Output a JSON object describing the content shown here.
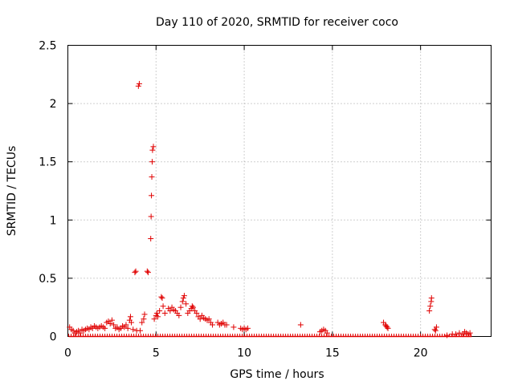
{
  "chart_data": {
    "type": "scatter",
    "title": "Day 110 of 2020, SRMTID for receiver coco",
    "xlabel": "GPS time / hours",
    "ylabel": "SRMTID / TECUs",
    "xlim": [
      0,
      24
    ],
    "ylim": [
      0,
      2.5
    ],
    "x_ticks": [
      0,
      5,
      10,
      15,
      20
    ],
    "y_ticks": [
      0,
      0.5,
      1,
      1.5,
      2,
      2.5
    ],
    "x_tick_labels": [
      "0",
      "5",
      "10",
      "15",
      "20"
    ],
    "y_tick_labels": [
      "0",
      "0.5",
      "1",
      "1.5",
      "2",
      "2.5"
    ],
    "grid": true,
    "marker": "+",
    "color": "#e00000",
    "zero_band": [
      0.05,
      22.9
    ],
    "series": [
      {
        "name": "SRMTID",
        "points": [
          [
            0.1,
            0.08
          ],
          [
            0.2,
            0.06
          ],
          [
            0.3,
            0.05
          ],
          [
            0.4,
            0.03
          ],
          [
            0.5,
            0.04
          ],
          [
            0.6,
            0.05
          ],
          [
            0.7,
            0.03
          ],
          [
            0.8,
            0.06
          ],
          [
            0.9,
            0.05
          ],
          [
            1.0,
            0.06
          ],
          [
            1.1,
            0.07
          ],
          [
            1.2,
            0.06
          ],
          [
            1.3,
            0.08
          ],
          [
            1.4,
            0.07
          ],
          [
            1.5,
            0.09
          ],
          [
            1.6,
            0.08
          ],
          [
            1.7,
            0.07
          ],
          [
            1.8,
            0.08
          ],
          [
            1.9,
            0.09
          ],
          [
            2.0,
            0.08
          ],
          [
            2.1,
            0.07
          ],
          [
            2.2,
            0.12
          ],
          [
            2.3,
            0.13
          ],
          [
            2.4,
            0.11
          ],
          [
            2.5,
            0.14
          ],
          [
            2.6,
            0.1
          ],
          [
            2.7,
            0.07
          ],
          [
            2.8,
            0.08
          ],
          [
            2.9,
            0.06
          ],
          [
            3.0,
            0.07
          ],
          [
            3.1,
            0.09
          ],
          [
            3.2,
            0.08
          ],
          [
            3.3,
            0.1
          ],
          [
            3.4,
            0.07
          ],
          [
            3.5,
            0.14
          ],
          [
            3.55,
            0.17
          ],
          [
            3.6,
            0.12
          ],
          [
            3.7,
            0.06
          ],
          [
            3.8,
            0.55
          ],
          [
            3.85,
            0.56
          ],
          [
            3.9,
            0.05
          ],
          [
            4.0,
            2.15
          ],
          [
            4.05,
            2.17
          ],
          [
            4.1,
            0.05
          ],
          [
            4.2,
            0.12
          ],
          [
            4.3,
            0.15
          ],
          [
            4.35,
            0.19
          ],
          [
            4.5,
            0.56
          ],
          [
            4.55,
            0.55
          ],
          [
            4.7,
            0.84
          ],
          [
            4.72,
            1.03
          ],
          [
            4.74,
            1.21
          ],
          [
            4.76,
            1.37
          ],
          [
            4.78,
            1.5
          ],
          [
            4.8,
            1.6
          ],
          [
            4.85,
            1.63
          ],
          [
            4.9,
            0.15
          ],
          [
            5.0,
            0.18
          ],
          [
            5.05,
            0.2
          ],
          [
            5.1,
            0.17
          ],
          [
            5.2,
            0.22
          ],
          [
            5.3,
            0.34
          ],
          [
            5.35,
            0.33
          ],
          [
            5.4,
            0.26
          ],
          [
            5.5,
            0.2
          ],
          [
            5.7,
            0.24
          ],
          [
            5.8,
            0.22
          ],
          [
            5.9,
            0.25
          ],
          [
            6.0,
            0.23
          ],
          [
            6.1,
            0.22
          ],
          [
            6.2,
            0.2
          ],
          [
            6.3,
            0.18
          ],
          [
            6.4,
            0.25
          ],
          [
            6.5,
            0.3
          ],
          [
            6.55,
            0.33
          ],
          [
            6.6,
            0.35
          ],
          [
            6.7,
            0.28
          ],
          [
            6.8,
            0.2
          ],
          [
            6.9,
            0.22
          ],
          [
            7.0,
            0.24
          ],
          [
            7.05,
            0.26
          ],
          [
            7.1,
            0.25
          ],
          [
            7.2,
            0.22
          ],
          [
            7.3,
            0.2
          ],
          [
            7.4,
            0.17
          ],
          [
            7.5,
            0.15
          ],
          [
            7.6,
            0.18
          ],
          [
            7.7,
            0.16
          ],
          [
            7.8,
            0.15
          ],
          [
            7.9,
            0.14
          ],
          [
            8.0,
            0.15
          ],
          [
            8.1,
            0.12
          ],
          [
            8.2,
            0.1
          ],
          [
            8.5,
            0.12
          ],
          [
            8.6,
            0.1
          ],
          [
            8.7,
            0.11
          ],
          [
            8.8,
            0.12
          ],
          [
            8.9,
            0.1
          ],
          [
            9.0,
            0.1
          ],
          [
            9.4,
            0.08
          ],
          [
            9.8,
            0.07
          ],
          [
            9.9,
            0.06
          ],
          [
            10.0,
            0.07
          ],
          [
            10.1,
            0.06
          ],
          [
            10.2,
            0.07
          ],
          [
            13.2,
            0.1
          ],
          [
            14.3,
            0.04
          ],
          [
            14.4,
            0.05
          ],
          [
            14.5,
            0.06
          ],
          [
            14.6,
            0.05
          ],
          [
            14.7,
            0.03
          ],
          [
            17.9,
            0.12
          ],
          [
            18.0,
            0.1
          ],
          [
            18.05,
            0.09
          ],
          [
            18.1,
            0.08
          ],
          [
            18.15,
            0.07
          ],
          [
            20.5,
            0.22
          ],
          [
            20.55,
            0.26
          ],
          [
            20.6,
            0.3
          ],
          [
            20.62,
            0.33
          ],
          [
            20.8,
            0.06
          ],
          [
            20.85,
            0.05
          ],
          [
            20.9,
            0.08
          ],
          [
            21.5,
            0.01
          ],
          [
            21.8,
            0.02
          ],
          [
            22.0,
            0.02
          ],
          [
            22.2,
            0.03
          ],
          [
            22.4,
            0.02
          ],
          [
            22.5,
            0.04
          ],
          [
            22.6,
            0.03
          ],
          [
            22.7,
            0.02
          ],
          [
            22.8,
            0.03
          ]
        ]
      }
    ]
  }
}
